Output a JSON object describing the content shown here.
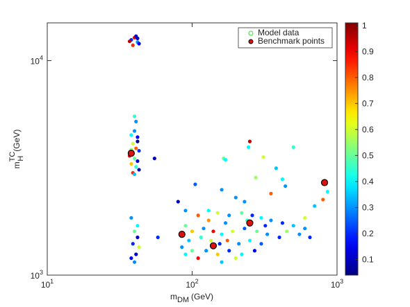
{
  "chart_data": {
    "type": "scatter",
    "xlabel": {
      "main": "m",
      "sub": "DM",
      "unit": "(GeV)"
    },
    "ylabel": {
      "main": "m",
      "sup": "TC",
      "sub": "H",
      "unit": "(GeV)"
    },
    "xlog": true,
    "ylog": true,
    "xlim": [
      10,
      1000
    ],
    "ylim": [
      1000,
      15000
    ],
    "xticks": [
      {
        "value": 10,
        "label": "10",
        "exponent": "1"
      },
      {
        "value": 100,
        "label": "10",
        "exponent": "2"
      },
      {
        "value": 1000,
        "label": "10",
        "exponent": "3"
      }
    ],
    "yticks": [
      {
        "value": 1000,
        "label": "10",
        "exponent": "3"
      },
      {
        "value": 10000,
        "label": "10",
        "exponent": "4"
      }
    ],
    "colormap": "jet",
    "clim": [
      0.04,
      1.01
    ],
    "cticks": [
      0.1,
      0.2,
      0.3,
      0.4,
      0.5,
      0.6,
      0.7,
      0.8,
      0.9,
      1
    ],
    "legend": "upper right",
    "series": [
      {
        "name": "Model data",
        "color": "#33dd33",
        "x": [
          38,
          40,
          42,
          39,
          41,
          43,
          37,
          42,
          38,
          40,
          42,
          39,
          41,
          43,
          37,
          40,
          42,
          38,
          41,
          39,
          43,
          40,
          38,
          42,
          40,
          41,
          38,
          40,
          42,
          39,
          41,
          43,
          38,
          40,
          42,
          58,
          55,
          80,
          90,
          110,
          130,
          150,
          180,
          220,
          260,
          300,
          350,
          420,
          500,
          600,
          90,
          100,
          120,
          140,
          160,
          190,
          230,
          280,
          330,
          400,
          95,
          115,
          135,
          155,
          175,
          210,
          250,
          300,
          100,
          125,
          150,
          180,
          220,
          110,
          160,
          200,
          270,
          85,
          90,
          130,
          170,
          240,
          320,
          450,
          550,
          650,
          165,
          170,
          250,
          245,
          310,
          500,
          380,
          420,
          440,
          800,
          860,
          700,
          160,
          105,
          275,
          200,
          350,
          600,
          230
        ],
        "values": [
          12500,
          12800,
          12200,
          11800,
          13000,
          12000,
          12300,
          12700,
          4500,
          4700,
          4400,
          4100,
          3900,
          3800,
          3600,
          3500,
          3400,
          3300,
          3200,
          3000,
          3100,
          2950,
          3850,
          4200,
          5500,
          5200,
          1850,
          1600,
          1500,
          1400,
          1250,
          1350,
          1200,
          1150,
          1700,
          1500,
          3500,
          2200,
          2000,
          1900,
          2000,
          1950,
          1900,
          1950,
          1900,
          1850,
          1800,
          1750,
          1700,
          1650,
          1700,
          1600,
          1650,
          1600,
          1550,
          1600,
          1650,
          1600,
          1550,
          1500,
          1450,
          1500,
          1450,
          1400,
          1450,
          1400,
          1450,
          1400,
          1300,
          1300,
          1250,
          1300,
          1250,
          1200,
          1150,
          1200,
          1300,
          1350,
          1250,
          1800,
          1750,
          1800,
          1700,
          1600,
          1550,
          1500,
          3500,
          3450,
          4200,
          3950,
          3550,
          3950,
          3150,
          2800,
          2600,
          2250,
          2450,
          2100,
          2500,
          2650,
          2850,
          2300,
          2400,
          1850,
          2200
        ],
        "z": [
          0.2,
          0.9,
          0.3,
          0.85,
          0.1,
          0.15,
          0.95,
          0.1,
          0.4,
          0.3,
          0.15,
          0.6,
          0.8,
          0.2,
          0.9,
          0.5,
          0.1,
          0.7,
          0.45,
          0.85,
          0.1,
          0.35,
          0.55,
          0.05,
          0.45,
          0.3,
          0.3,
          0.5,
          0.1,
          0.2,
          0.1,
          0.6,
          0.15,
          0.3,
          0.4,
          0.2,
          0.1,
          0.1,
          0.3,
          0.8,
          0.4,
          0.6,
          0.3,
          0.5,
          0.2,
          0.4,
          0.3,
          0.2,
          0.35,
          0.3,
          0.5,
          0.7,
          0.3,
          0.9,
          0.4,
          0.6,
          0.25,
          0.5,
          0.3,
          0.2,
          0.35,
          0.45,
          0.6,
          0.2,
          0.8,
          0.3,
          0.4,
          0.25,
          0.5,
          0.3,
          0.7,
          0.2,
          0.4,
          0.9,
          0.35,
          0.6,
          0.15,
          0.3,
          0.4,
          0.75,
          0.3,
          0.45,
          0.2,
          0.55,
          0.3,
          0.2,
          0.5,
          0.4,
          0.95,
          0.4,
          0.6,
          0.45,
          0.35,
          0.4,
          0.3,
          0.8,
          0.4,
          0.35,
          0.3,
          0.25,
          0.55,
          0.3,
          0.8,
          0.6,
          0.3
        ]
      },
      {
        "name": "Benchmark points",
        "color": "#dd1111",
        "x": [
          38,
          85,
          140,
          250,
          820
        ],
        "values": [
          3700,
          1550,
          1370,
          1750,
          2700
        ]
      }
    ]
  }
}
